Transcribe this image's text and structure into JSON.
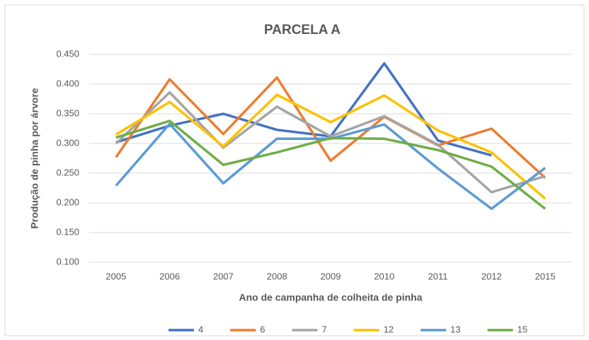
{
  "chart_data": {
    "type": "line",
    "title": "PARCELA A",
    "x_label": "Ano de campanha de colheita de pinha",
    "y_label": "Produção de pinha por árvore",
    "categories": [
      "2005",
      "2006",
      "2007",
      "2008",
      "2009",
      "2010",
      "2011",
      "2012",
      "2015"
    ],
    "series": [
      {
        "name": "4",
        "color": "#4472c4",
        "values": [
          0.302,
          0.33,
          0.35,
          0.323,
          0.312,
          0.435,
          0.305,
          0.28,
          null
        ]
      },
      {
        "name": "6",
        "color": "#ed7d31",
        "values": [
          0.277,
          0.408,
          0.316,
          0.411,
          0.271,
          0.345,
          0.297,
          0.325,
          0.242
        ]
      },
      {
        "name": "7",
        "color": "#a5a5a5",
        "values": [
          0.3,
          0.386,
          0.293,
          0.362,
          0.312,
          0.346,
          0.298,
          0.218,
          0.245
        ]
      },
      {
        "name": "12",
        "color": "#ffc000",
        "values": [
          0.315,
          0.37,
          0.295,
          0.382,
          0.336,
          0.381,
          0.322,
          0.285,
          0.207
        ]
      },
      {
        "name": "13",
        "color": "#5b9bd5",
        "values": [
          0.229,
          0.333,
          0.233,
          0.308,
          0.308,
          0.332,
          0.258,
          0.19,
          0.259
        ]
      },
      {
        "name": "15",
        "color": "#70ad47",
        "values": [
          0.31,
          0.338,
          0.264,
          0.285,
          0.309,
          0.308,
          0.289,
          0.261,
          0.19
        ]
      }
    ],
    "ylim": [
      0.1,
      0.45
    ],
    "yticks": [
      {
        "value": 0.1,
        "label": "0.100"
      },
      {
        "value": 0.15,
        "label": "0.150"
      },
      {
        "value": 0.2,
        "label": "0.200"
      },
      {
        "value": 0.25,
        "label": "0.250"
      },
      {
        "value": 0.3,
        "label": "0.300"
      },
      {
        "value": 0.35,
        "label": "0.350"
      },
      {
        "value": 0.4,
        "label": "0.400"
      },
      {
        "value": 0.45,
        "label": "0.450"
      }
    ],
    "grid": true,
    "legend": "bottom"
  }
}
